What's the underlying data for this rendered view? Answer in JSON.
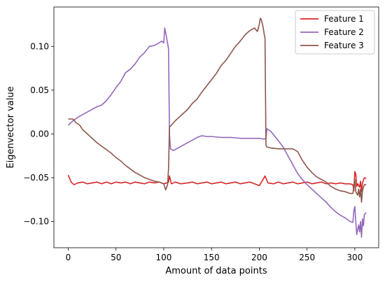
{
  "chart_data": {
    "type": "line",
    "title": "",
    "xlabel": "Amount of data points",
    "ylabel": "Eigenvector value",
    "xlim": [
      -15,
      325
    ],
    "ylim": [
      -0.13,
      0.145
    ],
    "xticks": [
      0,
      50,
      100,
      150,
      200,
      250,
      300
    ],
    "yticks": [
      -0.1,
      -0.05,
      0.0,
      0.05,
      0.1
    ],
    "xtick_labels": [
      "0",
      "50",
      "100",
      "150",
      "200",
      "250",
      "300"
    ],
    "ytick_labels": [
      "−0.10",
      "−0.05",
      "0.00",
      "0.05",
      "0.10"
    ],
    "grid": false,
    "legend_position": "top-right",
    "series": [
      {
        "name": "Feature 1",
        "color": "#d62728",
        "points": [
          [
            0,
            -0.047
          ],
          [
            3,
            -0.055
          ],
          [
            6,
            -0.058
          ],
          [
            10,
            -0.056
          ],
          [
            15,
            -0.055
          ],
          [
            20,
            -0.057
          ],
          [
            25,
            -0.056
          ],
          [
            30,
            -0.055
          ],
          [
            35,
            -0.057
          ],
          [
            40,
            -0.055
          ],
          [
            45,
            -0.057
          ],
          [
            50,
            -0.055
          ],
          [
            55,
            -0.056
          ],
          [
            60,
            -0.055
          ],
          [
            65,
            -0.057
          ],
          [
            70,
            -0.055
          ],
          [
            75,
            -0.056
          ],
          [
            80,
            -0.057
          ],
          [
            85,
            -0.055
          ],
          [
            90,
            -0.056
          ],
          [
            95,
            -0.055
          ],
          [
            100,
            -0.057
          ],
          [
            103,
            -0.056
          ],
          [
            105,
            -0.055
          ],
          [
            106,
            -0.048
          ],
          [
            108,
            -0.057
          ],
          [
            112,
            -0.055
          ],
          [
            118,
            -0.057
          ],
          [
            125,
            -0.056
          ],
          [
            130,
            -0.055
          ],
          [
            135,
            -0.057
          ],
          [
            140,
            -0.056
          ],
          [
            145,
            -0.055
          ],
          [
            150,
            -0.057
          ],
          [
            155,
            -0.056
          ],
          [
            160,
            -0.055
          ],
          [
            165,
            -0.057
          ],
          [
            170,
            -0.056
          ],
          [
            175,
            -0.055
          ],
          [
            180,
            -0.057
          ],
          [
            185,
            -0.056
          ],
          [
            190,
            -0.055
          ],
          [
            195,
            -0.057
          ],
          [
            200,
            -0.059
          ],
          [
            204,
            -0.052
          ],
          [
            206,
            -0.048
          ],
          [
            209,
            -0.056
          ],
          [
            215,
            -0.057
          ],
          [
            220,
            -0.055
          ],
          [
            225,
            -0.057
          ],
          [
            230,
            -0.056
          ],
          [
            235,
            -0.055
          ],
          [
            240,
            -0.057
          ],
          [
            245,
            -0.056
          ],
          [
            250,
            -0.055
          ],
          [
            255,
            -0.057
          ],
          [
            260,
            -0.056
          ],
          [
            265,
            -0.055
          ],
          [
            270,
            -0.057
          ],
          [
            275,
            -0.056
          ],
          [
            280,
            -0.057
          ],
          [
            285,
            -0.056
          ],
          [
            290,
            -0.057
          ],
          [
            295,
            -0.057
          ],
          [
            298,
            -0.058
          ],
          [
            299,
            -0.065
          ],
          [
            300,
            -0.043
          ],
          [
            301,
            -0.046
          ],
          [
            302,
            -0.06
          ],
          [
            303,
            -0.057
          ],
          [
            305,
            -0.061
          ],
          [
            306,
            -0.054
          ],
          [
            307,
            -0.066
          ],
          [
            308,
            -0.056
          ],
          [
            309,
            -0.053
          ],
          [
            310,
            -0.05
          ],
          [
            312,
            -0.051
          ]
        ]
      },
      {
        "name": "Feature 2",
        "color": "#9467bd",
        "points": [
          [
            0,
            0.01
          ],
          [
            5,
            0.015
          ],
          [
            10,
            0.019
          ],
          [
            15,
            0.022
          ],
          [
            20,
            0.025
          ],
          [
            25,
            0.028
          ],
          [
            30,
            0.031
          ],
          [
            35,
            0.033
          ],
          [
            40,
            0.038
          ],
          [
            45,
            0.045
          ],
          [
            50,
            0.053
          ],
          [
            55,
            0.06
          ],
          [
            60,
            0.07
          ],
          [
            65,
            0.074
          ],
          [
            70,
            0.08
          ],
          [
            75,
            0.088
          ],
          [
            80,
            0.093
          ],
          [
            85,
            0.1
          ],
          [
            90,
            0.101
          ],
          [
            95,
            0.104
          ],
          [
            98,
            0.106
          ],
          [
            100,
            0.104
          ],
          [
            101,
            0.121
          ],
          [
            103,
            0.11
          ],
          [
            105,
            0.097
          ],
          [
            106,
            0.0
          ],
          [
            107,
            -0.017
          ],
          [
            110,
            -0.019
          ],
          [
            115,
            -0.016
          ],
          [
            120,
            -0.013
          ],
          [
            125,
            -0.01
          ],
          [
            130,
            -0.007
          ],
          [
            135,
            -0.004
          ],
          [
            140,
            -0.002
          ],
          [
            145,
            -0.003
          ],
          [
            150,
            -0.003
          ],
          [
            160,
            -0.004
          ],
          [
            170,
            -0.004
          ],
          [
            180,
            -0.005
          ],
          [
            190,
            -0.005
          ],
          [
            200,
            -0.005
          ],
          [
            205,
            -0.006
          ],
          [
            207,
            -0.005
          ],
          [
            208,
            0.006
          ],
          [
            212,
            0.003
          ],
          [
            218,
            -0.005
          ],
          [
            225,
            -0.015
          ],
          [
            230,
            -0.025
          ],
          [
            235,
            -0.035
          ],
          [
            240,
            -0.045
          ],
          [
            245,
            -0.052
          ],
          [
            250,
            -0.058
          ],
          [
            255,
            -0.063
          ],
          [
            260,
            -0.068
          ],
          [
            265,
            -0.073
          ],
          [
            270,
            -0.078
          ],
          [
            275,
            -0.084
          ],
          [
            280,
            -0.089
          ],
          [
            285,
            -0.093
          ],
          [
            290,
            -0.096
          ],
          [
            295,
            -0.1
          ],
          [
            298,
            -0.101
          ],
          [
            299,
            -0.088
          ],
          [
            300,
            -0.083
          ],
          [
            301,
            -0.1
          ],
          [
            302,
            -0.115
          ],
          [
            304,
            -0.104
          ],
          [
            305,
            -0.112
          ],
          [
            306,
            -0.1
          ],
          [
            307,
            -0.118
          ],
          [
            308,
            -0.097
          ],
          [
            309,
            -0.105
          ],
          [
            310,
            -0.092
          ],
          [
            312,
            -0.09
          ]
        ]
      },
      {
        "name": "Feature 3",
        "color": "#8c564b",
        "points": [
          [
            0,
            0.017
          ],
          [
            5,
            0.017
          ],
          [
            8,
            0.013
          ],
          [
            12,
            0.01
          ],
          [
            15,
            0.005
          ],
          [
            20,
            0.0
          ],
          [
            25,
            -0.005
          ],
          [
            30,
            -0.01
          ],
          [
            35,
            -0.014
          ],
          [
            40,
            -0.018
          ],
          [
            45,
            -0.022
          ],
          [
            50,
            -0.027
          ],
          [
            55,
            -0.031
          ],
          [
            60,
            -0.036
          ],
          [
            65,
            -0.04
          ],
          [
            70,
            -0.044
          ],
          [
            75,
            -0.047
          ],
          [
            80,
            -0.05
          ],
          [
            85,
            -0.052
          ],
          [
            90,
            -0.054
          ],
          [
            95,
            -0.055
          ],
          [
            100,
            -0.057
          ],
          [
            102,
            -0.064
          ],
          [
            104,
            -0.058
          ],
          [
            105,
            -0.04
          ],
          [
            106,
            0.008
          ],
          [
            108,
            0.01
          ],
          [
            112,
            0.015
          ],
          [
            118,
            0.021
          ],
          [
            125,
            0.028
          ],
          [
            130,
            0.035
          ],
          [
            135,
            0.04
          ],
          [
            140,
            0.048
          ],
          [
            145,
            0.055
          ],
          [
            150,
            0.062
          ],
          [
            155,
            0.069
          ],
          [
            160,
            0.078
          ],
          [
            165,
            0.084
          ],
          [
            170,
            0.092
          ],
          [
            175,
            0.1
          ],
          [
            180,
            0.106
          ],
          [
            185,
            0.113
          ],
          [
            190,
            0.118
          ],
          [
            195,
            0.121
          ],
          [
            198,
            0.117
          ],
          [
            200,
            0.125
          ],
          [
            201,
            0.132
          ],
          [
            202,
            0.131
          ],
          [
            204,
            0.122
          ],
          [
            205,
            0.115
          ],
          [
            206,
            0.109
          ],
          [
            207,
            -0.013
          ],
          [
            208,
            -0.015
          ],
          [
            212,
            -0.016
          ],
          [
            220,
            -0.017
          ],
          [
            228,
            -0.017
          ],
          [
            235,
            -0.017
          ],
          [
            240,
            -0.02
          ],
          [
            245,
            -0.03
          ],
          [
            250,
            -0.038
          ],
          [
            255,
            -0.044
          ],
          [
            260,
            -0.049
          ],
          [
            265,
            -0.052
          ],
          [
            270,
            -0.055
          ],
          [
            275,
            -0.06
          ],
          [
            280,
            -0.063
          ],
          [
            285,
            -0.065
          ],
          [
            290,
            -0.066
          ],
          [
            295,
            -0.068
          ],
          [
            298,
            -0.068
          ],
          [
            299,
            -0.06
          ],
          [
            300,
            -0.052
          ],
          [
            301,
            -0.066
          ],
          [
            303,
            -0.07
          ],
          [
            304,
            -0.063
          ],
          [
            305,
            -0.072
          ],
          [
            306,
            -0.063
          ],
          [
            307,
            -0.078
          ],
          [
            308,
            -0.065
          ],
          [
            309,
            -0.061
          ],
          [
            310,
            -0.058
          ],
          [
            312,
            -0.058
          ]
        ]
      }
    ]
  }
}
